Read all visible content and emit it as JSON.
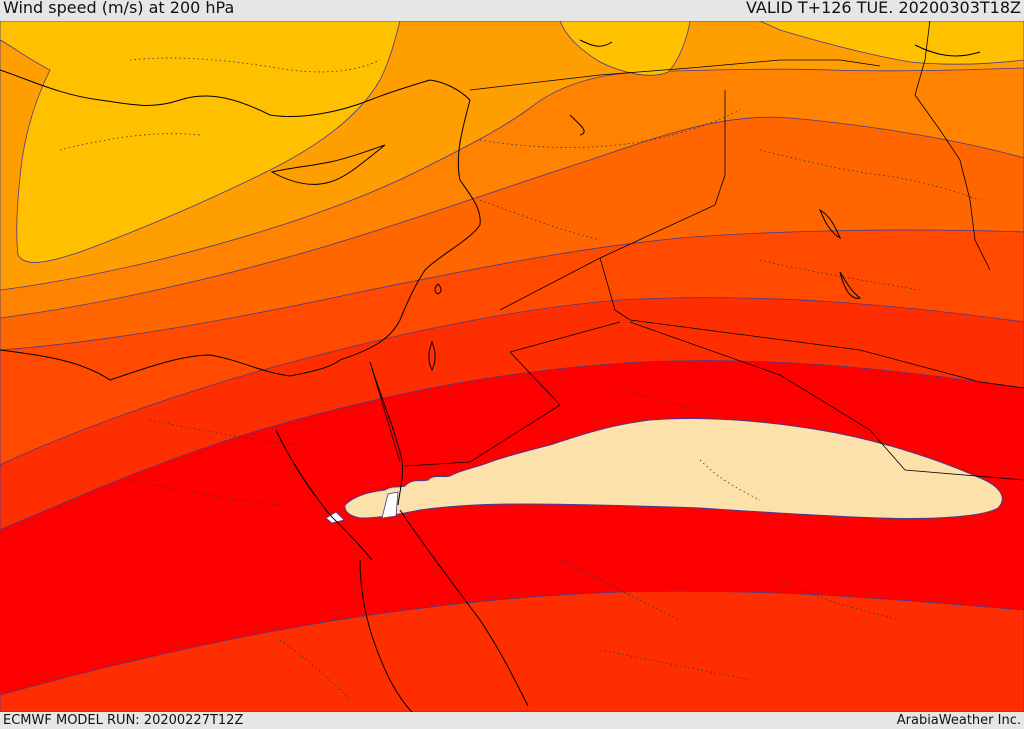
{
  "header": {
    "title": "Wind speed (m/s) at 200 hPa",
    "valid_time": "VALID T+126 TUE. 20200303T18Z"
  },
  "footer": {
    "model_run": "ECMWF MODEL RUN: 20200227T12Z",
    "credit": "ArabiaWeather Inc."
  },
  "colors": {
    "band_lightest": "#ffc000",
    "band_2": "#ff9e00",
    "band_3": "#ff8200",
    "band_4": "#ff6600",
    "band_5": "#ff4a00",
    "band_6": "#ff2e00",
    "band_core": "#ff0000",
    "jet_max": "#fde1ab",
    "contour_line": "#4a3a8c",
    "coastline": "#000000"
  }
}
